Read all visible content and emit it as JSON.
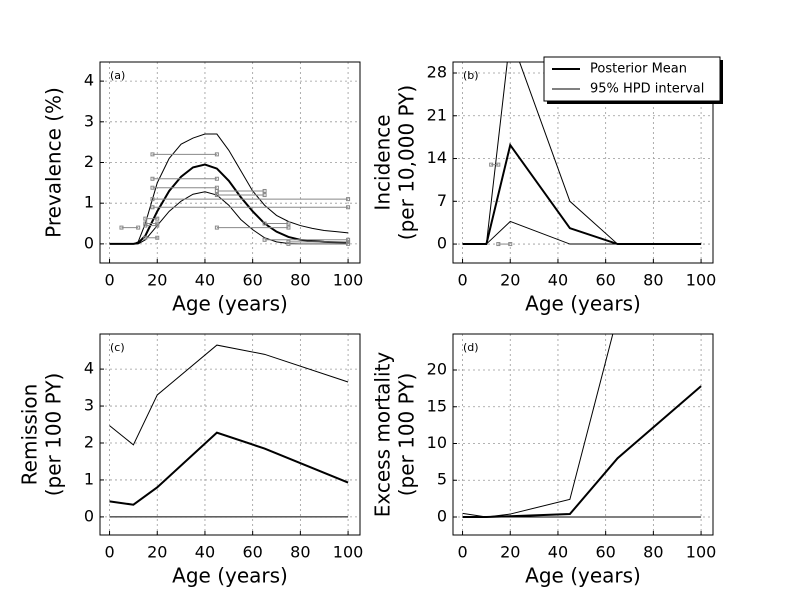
{
  "chart_data": [
    {
      "type": "line",
      "annotation": "(a)",
      "xlabel": "Age (years)",
      "ylabel": [
        "Prevalence (%)"
      ],
      "x": [
        0,
        10,
        12,
        15,
        20,
        25,
        30,
        35,
        40,
        45,
        50,
        55,
        60,
        65,
        70,
        75,
        80,
        85,
        90,
        95,
        100
      ],
      "series": [
        {
          "color": "#000000",
          "linewidth": 2,
          "values": [
            0,
            0,
            0.02,
            0.2,
            0.8,
            1.3,
            1.65,
            1.88,
            1.95,
            1.85,
            1.55,
            1.15,
            0.8,
            0.5,
            0.3,
            0.17,
            0.1,
            0.07,
            0.05,
            0.04,
            0.03
          ]
        },
        {
          "color": "#000000",
          "linewidth": 1,
          "values": [
            0,
            0,
            0.05,
            0.5,
            1.5,
            2.1,
            2.45,
            2.6,
            2.7,
            2.7,
            2.3,
            1.8,
            1.3,
            0.95,
            0.7,
            0.55,
            0.45,
            0.38,
            0.33,
            0.3,
            0.27
          ]
        },
        {
          "color": "#000000",
          "linewidth": 1,
          "values": [
            0,
            0,
            0,
            0.1,
            0.45,
            0.8,
            1.05,
            1.22,
            1.28,
            1.2,
            0.95,
            0.6,
            0.35,
            0.15,
            0.05,
            0.01,
            0,
            0,
            0,
            0,
            0
          ]
        }
      ],
      "observations": {
        "color": "#888888",
        "x_start": [
          18,
          18,
          18,
          45,
          45,
          18,
          18,
          15,
          15,
          15,
          15,
          5,
          45,
          65,
          65,
          75,
          75
        ],
        "x_end": [
          45,
          45,
          45,
          65,
          65,
          100,
          100,
          20,
          20,
          20,
          20,
          12,
          75,
          75,
          100,
          100,
          100
        ],
        "values": [
          2.2,
          1.6,
          1.38,
          1.3,
          1.2,
          1.1,
          0.9,
          0.62,
          0.5,
          0.45,
          0.15,
          0.4,
          0.4,
          0.5,
          0.1,
          0,
          0.05
        ]
      },
      "xlim": [
        -4,
        105
      ],
      "ylim": [
        -0.47,
        4.47
      ],
      "xticks": [
        0,
        20,
        40,
        60,
        80,
        100
      ],
      "yticks": [
        0,
        1,
        2,
        3,
        4
      ],
      "grid": true
    },
    {
      "type": "line",
      "annotation": "(b)",
      "xlabel": "Age (years)",
      "ylabel": [
        "Incidence",
        "(per 10,000 PY)"
      ],
      "x": [
        0,
        10,
        20,
        45,
        65,
        100
      ],
      "series": [
        {
          "name": "Posterior Mean",
          "color": "#000000",
          "linewidth": 2,
          "values": [
            0,
            0,
            16.2,
            2.6,
            0,
            0
          ]
        },
        {
          "name": "95% HPD interval",
          "color": "#000000",
          "linewidth": 1,
          "values": [
            0,
            0,
            34,
            7,
            0,
            0
          ]
        },
        {
          "color": "#000000",
          "linewidth": 1,
          "values": [
            0,
            0,
            3.7,
            0,
            0,
            0
          ]
        }
      ],
      "observations": {
        "color": "#888888",
        "x_start": [
          12,
          15
        ],
        "x_end": [
          15,
          20
        ],
        "values": [
          13,
          0
        ]
      },
      "xlim": [
        -4,
        105
      ],
      "ylim": [
        -3.1,
        29.8
      ],
      "xticks": [
        0,
        20,
        40,
        60,
        80,
        100
      ],
      "yticks": [
        0,
        7,
        14,
        21,
        28
      ],
      "grid": true,
      "legend": "upper right"
    },
    {
      "type": "line",
      "annotation": "(c)",
      "xlabel": "Age (years)",
      "ylabel": [
        "Remission",
        "(per 100 PY)"
      ],
      "x": [
        0,
        10,
        20,
        45,
        65,
        100
      ],
      "series": [
        {
          "color": "#000000",
          "linewidth": 2,
          "values": [
            0.42,
            0.33,
            0.8,
            2.28,
            1.85,
            0.93
          ]
        },
        {
          "color": "#000000",
          "linewidth": 1,
          "values": [
            2.47,
            1.95,
            3.3,
            4.65,
            4.4,
            3.65
          ]
        },
        {
          "color": "#000000",
          "linewidth": 1,
          "values": [
            0,
            0,
            0,
            0,
            0,
            0
          ]
        }
      ],
      "xlim": [
        -4,
        105
      ],
      "ylim": [
        -0.49,
        4.95
      ],
      "xticks": [
        0,
        20,
        40,
        60,
        80,
        100
      ],
      "yticks": [
        0,
        1,
        2,
        3,
        4
      ],
      "grid": true
    },
    {
      "type": "line",
      "annotation": "(d)",
      "xlabel": "Age (years)",
      "ylabel": [
        "Excess mortality",
        "(per 100 PY)"
      ],
      "x": [
        0,
        10,
        20,
        45,
        65,
        100
      ],
      "series": [
        {
          "color": "#000000",
          "linewidth": 2,
          "values": [
            0,
            0,
            0.1,
            0.4,
            8,
            17.8
          ]
        },
        {
          "color": "#000000",
          "linewidth": 1,
          "values": [
            0.5,
            0,
            0.4,
            2.4,
            27.4,
            40
          ]
        },
        {
          "color": "#000000",
          "linewidth": 1,
          "values": [
            0,
            0,
            0,
            0,
            0,
            0
          ]
        }
      ],
      "xlim": [
        -4,
        105
      ],
      "ylim": [
        -2.45,
        24.9
      ],
      "xticks": [
        0,
        20,
        40,
        60,
        80,
        100
      ],
      "yticks": [
        0,
        5,
        10,
        15,
        20
      ],
      "grid": true
    }
  ]
}
